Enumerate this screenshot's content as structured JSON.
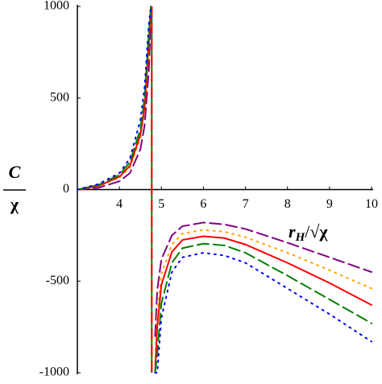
{
  "chart_data": {
    "type": "line",
    "ylabel": {
      "numerator": "C",
      "denominator": "χ"
    },
    "xlabel": {
      "base": "r",
      "subscript": "H",
      "slash": "/√",
      "radicand": "χ"
    },
    "x": [
      3,
      3.5,
      4,
      4.25,
      4.5,
      4.6,
      4.7,
      4.75,
      4.77,
      4.85,
      4.9,
      5,
      5.25,
      5.5,
      6,
      6.5,
      7,
      8,
      9,
      10
    ],
    "series": [
      {
        "color": "#800080",
        "dash": "dashed",
        "values": [
          0,
          10,
          45,
          90,
          220,
          350,
          650,
          950,
          null,
          -800,
          -550,
          -380,
          -250,
          -200,
          -180,
          -190,
          -215,
          -290,
          -370,
          -450
        ]
      },
      {
        "color": "#ffa500",
        "dash": "dotted",
        "values": [
          0,
          18,
          65,
          120,
          280,
          430,
          780,
          1000,
          null,
          -950,
          -680,
          -460,
          -300,
          -240,
          -220,
          -230,
          -260,
          -345,
          -440,
          -540
        ]
      },
      {
        "color": "#ff0000",
        "dash": "solid",
        "values": [
          0,
          20,
          70,
          130,
          300,
          450,
          800,
          1000,
          null,
          -1000,
          -750,
          -520,
          -340,
          -275,
          -255,
          -265,
          -300,
          -400,
          -510,
          -630
        ]
      },
      {
        "color": "#008000",
        "dash": "dashed",
        "values": [
          0,
          25,
          80,
          150,
          330,
          500,
          850,
          1000,
          null,
          -1000,
          -900,
          -620,
          -400,
          -320,
          -295,
          -305,
          -345,
          -470,
          -600,
          -730
        ]
      },
      {
        "color": "#0000ff",
        "dash": "dotted",
        "values": [
          0,
          30,
          90,
          170,
          380,
          560,
          900,
          1000,
          null,
          -1000,
          -1000,
          -700,
          -450,
          -370,
          -345,
          -360,
          -400,
          -540,
          -680,
          -830
        ]
      }
    ],
    "vlines": [
      {
        "x": 4.77,
        "color": "#008000",
        "dash": "solid"
      },
      {
        "x": 4.77,
        "color": "#ff0000",
        "dash": "dashed"
      }
    ],
    "xlim": [
      3,
      10
    ],
    "ylim": [
      -1000,
      1000
    ],
    "xticks": [
      4,
      5,
      6,
      7,
      8,
      9,
      10
    ],
    "yticks": [
      -1000,
      -500,
      0,
      500,
      1000
    ]
  }
}
